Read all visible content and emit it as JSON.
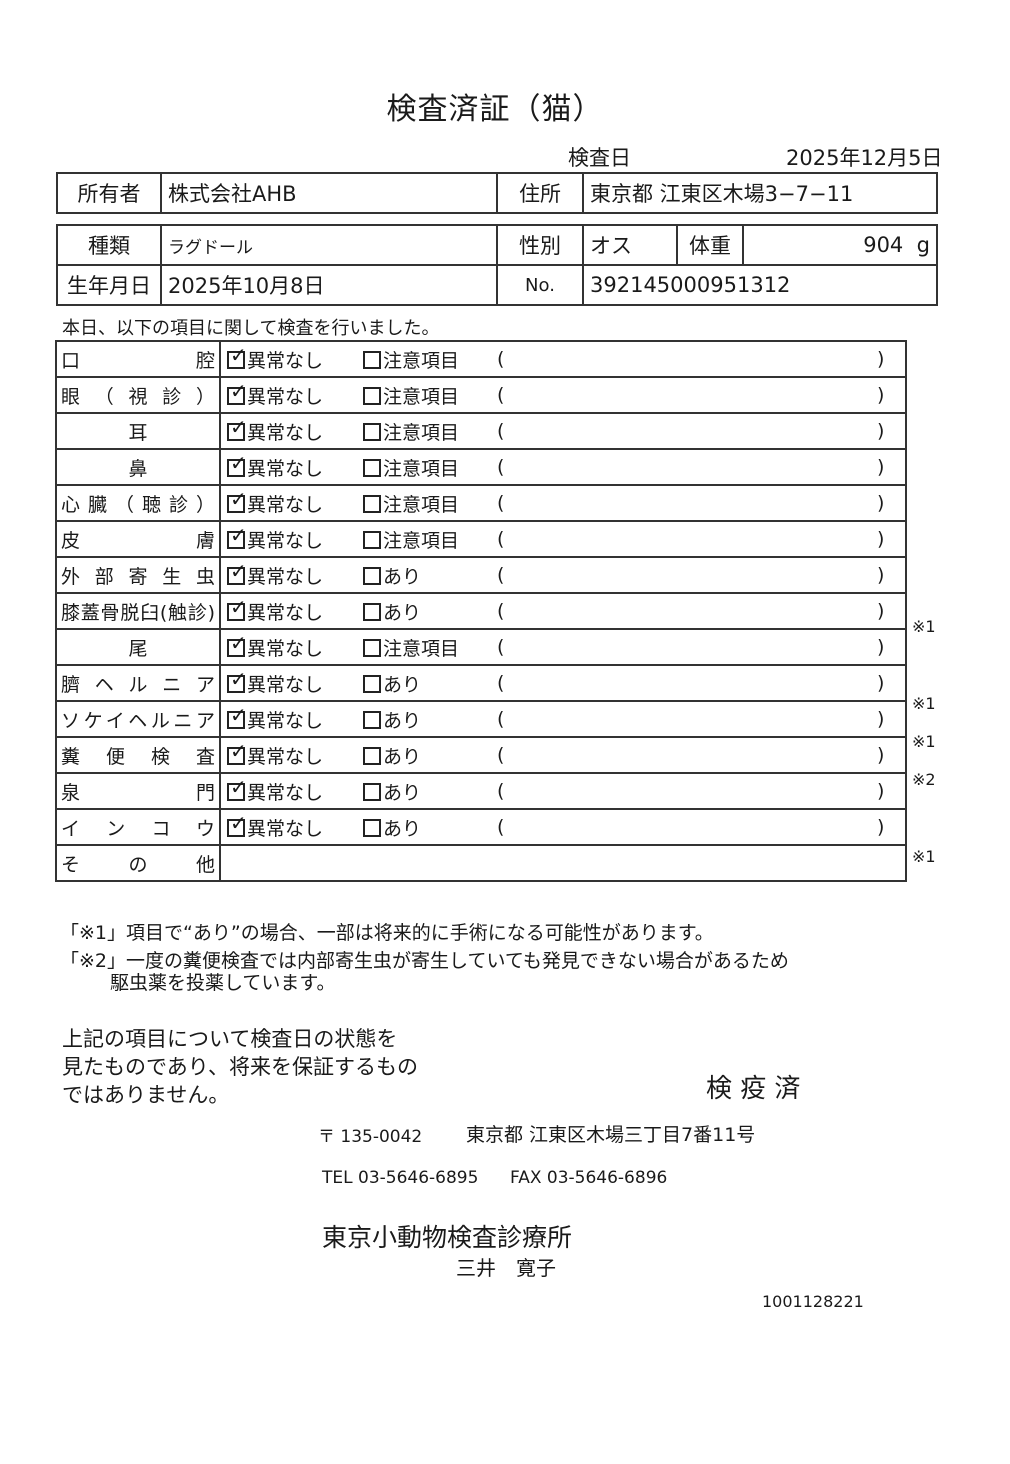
{
  "title": "検査済証（猫）",
  "exam_date_label": "検査日",
  "exam_date": "2025年12月5日",
  "owner_label": "所有者",
  "owner": "株式会社AHB",
  "address_label": "住所",
  "address": "東京都 江東区木場3−7−11",
  "breed_label": "種類",
  "breed": "ラグドール",
  "sex_label": "性別",
  "sex": "オス",
  "weight_label": "体重",
  "weight": "904",
  "weight_unit": "g",
  "birth_label": "生年月日",
  "birth": "2025年10月8日",
  "no_label": "No.",
  "no": "392145000951312",
  "intro": "本日、以下の項目に関して検査を行いました。",
  "normal_label": "異常なし",
  "paren_open": "(",
  "paren_close": ")",
  "rows": [
    {
      "label": "口腔",
      "alt": "注意項目",
      "note": "",
      "align": "just",
      "checked": true
    },
    {
      "label": "眼（視診）",
      "alt": "注意項目",
      "note": "",
      "align": "just",
      "checked": true
    },
    {
      "label": "耳",
      "alt": "注意項目",
      "note": "",
      "align": "center",
      "checked": true
    },
    {
      "label": "鼻",
      "alt": "注意項目",
      "note": "",
      "align": "center",
      "checked": true
    },
    {
      "label": "心臓（聴診）",
      "alt": "注意項目",
      "note": "",
      "align": "just",
      "checked": true
    },
    {
      "label": "皮膚",
      "alt": "注意項目",
      "note": "",
      "align": "just",
      "checked": true
    },
    {
      "label": "外部寄生虫",
      "alt": "あり",
      "note": "",
      "align": "just",
      "checked": true
    },
    {
      "label": "膝蓋骨脱臼(触診)",
      "alt": "あり",
      "note": "※1",
      "align": "just",
      "checked": true
    },
    {
      "label": "尾",
      "alt": "注意項目",
      "note": "",
      "align": "center",
      "checked": true
    },
    {
      "label": "臍ヘルニア",
      "alt": "あり",
      "note": "※1",
      "align": "just",
      "checked": true
    },
    {
      "label": "ソケイヘルニア",
      "alt": "あり",
      "note": "※1",
      "align": "just",
      "checked": true
    },
    {
      "label": "糞便検査",
      "alt": "あり",
      "note": "※2",
      "align": "just",
      "checked": true
    },
    {
      "label": "泉門",
      "alt": "あり",
      "note": "",
      "align": "just",
      "checked": true
    },
    {
      "label": "インコウ",
      "alt": "あり",
      "note": "※1",
      "align": "just",
      "checked": true
    }
  ],
  "other_label": "その他",
  "footnote1": "「※1」項目で“あり”の場合、一部は将来的に手術になる可能性があります。",
  "footnote2a": "「※2」一度の糞便検査では内部寄生虫が寄生していても発見できない場合があるため",
  "footnote2b": "駆虫薬を投薬しています。",
  "disclaimer": [
    "上記の項目について検査日の状態を",
    "見たものであり、将来を保証するもの",
    "ではありません。"
  ],
  "stamp": "検 疫 済",
  "postal": "〒 135-0042",
  "clinic_address": "東京都 江東区木場三丁目7番11号",
  "tel": "TEL 03-5646-6895",
  "fax": "FAX 03-5646-6896",
  "clinic_name": "東京小動物検査診療所",
  "vet_name": "三井　寛子",
  "doc_number": "1001128221"
}
